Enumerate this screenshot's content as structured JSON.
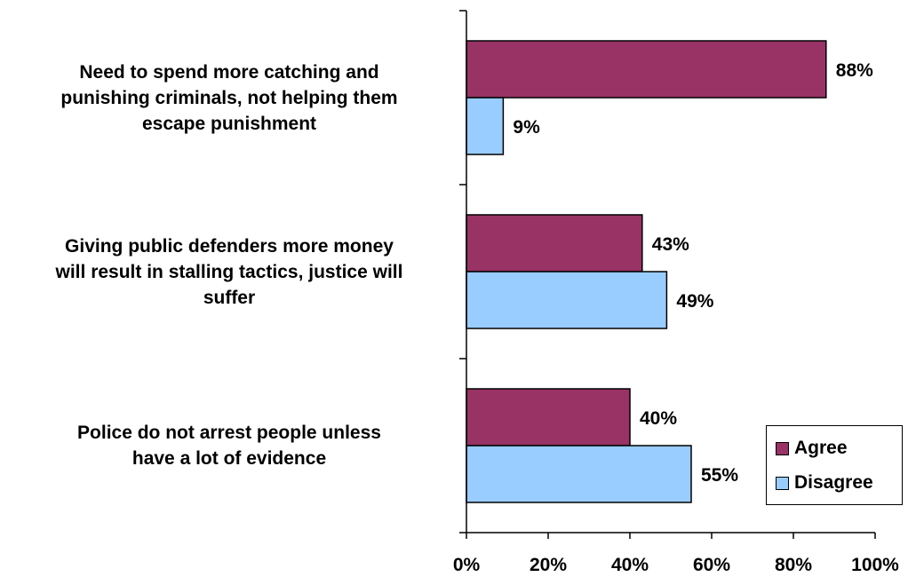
{
  "chart_data": {
    "type": "bar",
    "orientation": "horizontal",
    "categories": [
      "Need to spend more catching and\npunishing criminals, not helping them\nescape punishment",
      "Giving public defenders more money\nwill result in stalling tactics, justice will\nsuffer",
      "Police do not arrest people unless\nhave a lot of evidence"
    ],
    "series": [
      {
        "name": "Agree",
        "values": [
          88,
          43,
          40
        ],
        "labels": [
          "88%",
          "43%",
          "40%"
        ],
        "color": "#993366"
      },
      {
        "name": "Disagree",
        "values": [
          9,
          49,
          55
        ],
        "labels": [
          "9%",
          "49%",
          "55%"
        ],
        "color": "#99CCFF"
      }
    ],
    "x_ticks": [
      "0%",
      "20%",
      "40%",
      "60%",
      "80%",
      "100%"
    ],
    "xlim": [
      0,
      100
    ],
    "legend_position": "bottom-right",
    "grid": false
  }
}
